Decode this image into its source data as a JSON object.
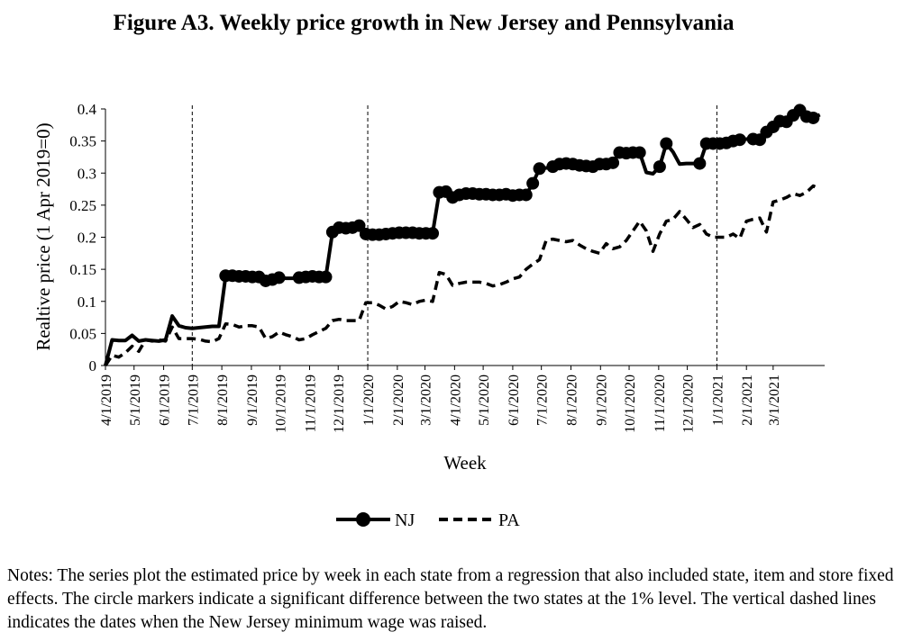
{
  "title": "Figure A3. Weekly price growth in New Jersey and Pennsylvania",
  "notes": "Notes: The series plot the estimated price by week in each state from a regression that also included state, item and store fixed effects. The circle markers indicate a significant difference between the two states at the 1% level. The vertical dashed lines indicates the dates when the New Jersey minimum wage was raised.",
  "chart_data": {
    "type": "line",
    "xlabel": "Week",
    "ylabel": "Realtive price (1 Apr 2019=0)",
    "ylim": [
      0,
      0.4
    ],
    "yticks": [
      0,
      0.05,
      0.1,
      0.15,
      0.2,
      0.25,
      0.3,
      0.35,
      0.4
    ],
    "ytick_labels": [
      "0",
      "0.05",
      "0.1",
      "0.15",
      "0.2",
      "0.25",
      "0.3",
      "0.35",
      "0.4"
    ],
    "xticks": [
      "4/1/2019",
      "5/1/2019",
      "6/1/2019",
      "7/1/2019",
      "8/1/2019",
      "9/1/2019",
      "10/1/2019",
      "11/1/2019",
      "12/1/2019",
      "1/1/2020",
      "2/1/2020",
      "3/1/2020",
      "4/1/2020",
      "5/1/2020",
      "6/1/2020",
      "7/1/2020",
      "8/1/2020",
      "9/1/2020",
      "10/1/2020",
      "11/1/2020",
      "12/1/2020",
      "1/1/2021",
      "2/1/2021",
      "3/1/2021"
    ],
    "xlim": [
      "2019-04-01",
      "2021-04-24"
    ],
    "vlines": [
      "2019-07-01",
      "2020-01-01",
      "2021-01-01"
    ],
    "legend": {
      "position": "bottom",
      "entries": [
        "NJ",
        "PA"
      ]
    },
    "grid": false,
    "series": [
      {
        "name": "NJ",
        "style": "solid",
        "marker": "circle",
        "points": [
          [
            "2019-04-01",
            0,
            0
          ],
          [
            "2019-04-08",
            0.04,
            0
          ],
          [
            "2019-04-15",
            0.039,
            0
          ],
          [
            "2019-04-22",
            0.039,
            0
          ],
          [
            "2019-04-29",
            0.047,
            0
          ],
          [
            "2019-05-06",
            0.038,
            0
          ],
          [
            "2019-05-13",
            0.04,
            0
          ],
          [
            "2019-05-20",
            0.039,
            0
          ],
          [
            "2019-05-27",
            0.038,
            0
          ],
          [
            "2019-06-03",
            0.04,
            0
          ],
          [
            "2019-06-10",
            0.077,
            0
          ],
          [
            "2019-06-17",
            0.062,
            0
          ],
          [
            "2019-06-24",
            0.059,
            0
          ],
          [
            "2019-07-01",
            0.058,
            0
          ],
          [
            "2019-07-08",
            0.059,
            0
          ],
          [
            "2019-07-15",
            0.06,
            0
          ],
          [
            "2019-07-22",
            0.061,
            0
          ],
          [
            "2019-07-29",
            0.061,
            0
          ],
          [
            "2019-08-05",
            0.14,
            1
          ],
          [
            "2019-08-12",
            0.14,
            1
          ],
          [
            "2019-08-19",
            0.139,
            1
          ],
          [
            "2019-08-26",
            0.139,
            1
          ],
          [
            "2019-09-02",
            0.138,
            1
          ],
          [
            "2019-09-09",
            0.138,
            1
          ],
          [
            "2019-09-16",
            0.132,
            1
          ],
          [
            "2019-09-23",
            0.134,
            1
          ],
          [
            "2019-09-30",
            0.137,
            1
          ],
          [
            "2019-10-07",
            0.136,
            0
          ],
          [
            "2019-10-14",
            0.136,
            0
          ],
          [
            "2019-10-21",
            0.137,
            1
          ],
          [
            "2019-10-28",
            0.138,
            1
          ],
          [
            "2019-11-04",
            0.139,
            1
          ],
          [
            "2019-11-11",
            0.138,
            1
          ],
          [
            "2019-11-18",
            0.138,
            1
          ],
          [
            "2019-11-25",
            0.208,
            1
          ],
          [
            "2019-12-02",
            0.215,
            1
          ],
          [
            "2019-12-09",
            0.214,
            1
          ],
          [
            "2019-12-16",
            0.215,
            1
          ],
          [
            "2019-12-23",
            0.218,
            1
          ],
          [
            "2019-12-30",
            0.205,
            1
          ],
          [
            "2020-01-06",
            0.204,
            1
          ],
          [
            "2020-01-13",
            0.204,
            1
          ],
          [
            "2020-01-20",
            0.205,
            1
          ],
          [
            "2020-01-27",
            0.206,
            1
          ],
          [
            "2020-02-03",
            0.207,
            1
          ],
          [
            "2020-02-10",
            0.207,
            1
          ],
          [
            "2020-02-17",
            0.207,
            1
          ],
          [
            "2020-02-24",
            0.206,
            1
          ],
          [
            "2020-03-02",
            0.206,
            1
          ],
          [
            "2020-03-09",
            0.206,
            1
          ],
          [
            "2020-03-16",
            0.27,
            1
          ],
          [
            "2020-03-23",
            0.271,
            1
          ],
          [
            "2020-03-30",
            0.262,
            1
          ],
          [
            "2020-04-06",
            0.266,
            1
          ],
          [
            "2020-04-13",
            0.268,
            1
          ],
          [
            "2020-04-20",
            0.268,
            1
          ],
          [
            "2020-04-27",
            0.267,
            1
          ],
          [
            "2020-05-04",
            0.267,
            1
          ],
          [
            "2020-05-11",
            0.266,
            1
          ],
          [
            "2020-05-18",
            0.266,
            1
          ],
          [
            "2020-05-25",
            0.267,
            1
          ],
          [
            "2020-06-01",
            0.265,
            1
          ],
          [
            "2020-06-08",
            0.266,
            1
          ],
          [
            "2020-06-15",
            0.266,
            1
          ],
          [
            "2020-06-22",
            0.284,
            1
          ],
          [
            "2020-06-29",
            0.307,
            1
          ],
          [
            "2020-07-06",
            0.308,
            0
          ],
          [
            "2020-07-13",
            0.31,
            1
          ],
          [
            "2020-07-20",
            0.314,
            1
          ],
          [
            "2020-07-27",
            0.315,
            1
          ],
          [
            "2020-08-03",
            0.314,
            1
          ],
          [
            "2020-08-10",
            0.312,
            1
          ],
          [
            "2020-08-17",
            0.311,
            1
          ],
          [
            "2020-08-24",
            0.31,
            1
          ],
          [
            "2020-08-31",
            0.314,
            1
          ],
          [
            "2020-09-07",
            0.314,
            1
          ],
          [
            "2020-09-14",
            0.316,
            1
          ],
          [
            "2020-09-21",
            0.332,
            1
          ],
          [
            "2020-09-28",
            0.331,
            1
          ],
          [
            "2020-10-05",
            0.332,
            1
          ],
          [
            "2020-10-12",
            0.332,
            1
          ],
          [
            "2020-10-19",
            0.301,
            0
          ],
          [
            "2020-10-26",
            0.299,
            0
          ],
          [
            "2020-11-02",
            0.31,
            1
          ],
          [
            "2020-11-09",
            0.346,
            1
          ],
          [
            "2020-11-16",
            0.333,
            0
          ],
          [
            "2020-11-23",
            0.314,
            0
          ],
          [
            "2020-11-30",
            0.315,
            0
          ],
          [
            "2020-12-07",
            0.315,
            0
          ],
          [
            "2020-12-14",
            0.315,
            1
          ],
          [
            "2020-12-21",
            0.346,
            1
          ],
          [
            "2020-12-28",
            0.346,
            1
          ],
          [
            "2021-01-04",
            0.346,
            1
          ],
          [
            "2021-01-11",
            0.347,
            1
          ],
          [
            "2021-01-18",
            0.35,
            1
          ],
          [
            "2021-01-25",
            0.352,
            1
          ],
          [
            "2021-02-01",
            0.353,
            0
          ],
          [
            "2021-02-08",
            0.353,
            1
          ],
          [
            "2021-02-15",
            0.352,
            1
          ],
          [
            "2021-02-22",
            0.364,
            1
          ],
          [
            "2021-03-01",
            0.372,
            1
          ],
          [
            "2021-03-08",
            0.381,
            1
          ],
          [
            "2021-03-15",
            0.38,
            1
          ],
          [
            "2021-03-22",
            0.39,
            1
          ],
          [
            "2021-03-29",
            0.398,
            1
          ],
          [
            "2021-04-05",
            0.388,
            1
          ],
          [
            "2021-04-12",
            0.386,
            1
          ],
          [
            "2021-04-19",
            0.391,
            0
          ]
        ]
      },
      {
        "name": "PA",
        "style": "dashed",
        "marker": "none",
        "points": [
          [
            "2019-04-01",
            0,
            0
          ],
          [
            "2019-04-08",
            0.016,
            0
          ],
          [
            "2019-04-15",
            0.013,
            0
          ],
          [
            "2019-04-22",
            0.02,
            0
          ],
          [
            "2019-04-29",
            0.03,
            0
          ],
          [
            "2019-05-06",
            0.022,
            0
          ],
          [
            "2019-05-13",
            0.04,
            0
          ],
          [
            "2019-05-20",
            0.038,
            0
          ],
          [
            "2019-05-27",
            0.04,
            0
          ],
          [
            "2019-06-03",
            0.038,
            0
          ],
          [
            "2019-06-10",
            0.06,
            0
          ],
          [
            "2019-06-17",
            0.042,
            0
          ],
          [
            "2019-06-24",
            0.042,
            0
          ],
          [
            "2019-07-01",
            0.042,
            0
          ],
          [
            "2019-07-08",
            0.041,
            0
          ],
          [
            "2019-07-15",
            0.038,
            0
          ],
          [
            "2019-07-22",
            0.037,
            0
          ],
          [
            "2019-07-29",
            0.042,
            0
          ],
          [
            "2019-08-05",
            0.065,
            0
          ],
          [
            "2019-08-12",
            0.064,
            0
          ],
          [
            "2019-08-19",
            0.06,
            0
          ],
          [
            "2019-08-26",
            0.062,
            0
          ],
          [
            "2019-09-02",
            0.062,
            0
          ],
          [
            "2019-09-09",
            0.06,
            0
          ],
          [
            "2019-09-16",
            0.042,
            0
          ],
          [
            "2019-09-23",
            0.045,
            0
          ],
          [
            "2019-09-30",
            0.052,
            0
          ],
          [
            "2019-10-07",
            0.048,
            0
          ],
          [
            "2019-10-14",
            0.045,
            0
          ],
          [
            "2019-10-21",
            0.04,
            0
          ],
          [
            "2019-10-28",
            0.042,
            0
          ],
          [
            "2019-11-04",
            0.048,
            0
          ],
          [
            "2019-11-11",
            0.053,
            0
          ],
          [
            "2019-11-18",
            0.058,
            0
          ],
          [
            "2019-11-25",
            0.07,
            0
          ],
          [
            "2019-12-02",
            0.072,
            0
          ],
          [
            "2019-12-09",
            0.07,
            0
          ],
          [
            "2019-12-16",
            0.07,
            0
          ],
          [
            "2019-12-23",
            0.07,
            0
          ],
          [
            "2019-12-30",
            0.098,
            0
          ],
          [
            "2020-01-06",
            0.098,
            0
          ],
          [
            "2020-01-13",
            0.094,
            0
          ],
          [
            "2020-01-20",
            0.088,
            0
          ],
          [
            "2020-01-27",
            0.092,
            0
          ],
          [
            "2020-02-03",
            0.1,
            0
          ],
          [
            "2020-02-10",
            0.098,
            0
          ],
          [
            "2020-02-17",
            0.095,
            0
          ],
          [
            "2020-02-24",
            0.1,
            0
          ],
          [
            "2020-03-02",
            0.102,
            0
          ],
          [
            "2020-03-09",
            0.1,
            0
          ],
          [
            "2020-03-16",
            0.145,
            0
          ],
          [
            "2020-03-23",
            0.142,
            0
          ],
          [
            "2020-03-30",
            0.125,
            0
          ],
          [
            "2020-04-06",
            0.128,
            0
          ],
          [
            "2020-04-13",
            0.13,
            0
          ],
          [
            "2020-04-20",
            0.13,
            0
          ],
          [
            "2020-04-27",
            0.13,
            0
          ],
          [
            "2020-05-04",
            0.128,
            0
          ],
          [
            "2020-05-11",
            0.124,
            0
          ],
          [
            "2020-05-18",
            0.126,
            0
          ],
          [
            "2020-05-25",
            0.13,
            0
          ],
          [
            "2020-06-01",
            0.135,
            0
          ],
          [
            "2020-06-08",
            0.138,
            0
          ],
          [
            "2020-06-15",
            0.15,
            0
          ],
          [
            "2020-06-22",
            0.158,
            0
          ],
          [
            "2020-06-29",
            0.165,
            0
          ],
          [
            "2020-07-06",
            0.195,
            0
          ],
          [
            "2020-07-13",
            0.197,
            0
          ],
          [
            "2020-07-20",
            0.195,
            0
          ],
          [
            "2020-07-27",
            0.193,
            0
          ],
          [
            "2020-08-03",
            0.195,
            0
          ],
          [
            "2020-08-10",
            0.188,
            0
          ],
          [
            "2020-08-17",
            0.182,
            0
          ],
          [
            "2020-08-24",
            0.178,
            0
          ],
          [
            "2020-08-31",
            0.175,
            0
          ],
          [
            "2020-09-07",
            0.19,
            0
          ],
          [
            "2020-09-14",
            0.182,
            0
          ],
          [
            "2020-09-21",
            0.185,
            0
          ],
          [
            "2020-09-28",
            0.195,
            0
          ],
          [
            "2020-10-05",
            0.21,
            0
          ],
          [
            "2020-10-12",
            0.225,
            0
          ],
          [
            "2020-10-19",
            0.21,
            0
          ],
          [
            "2020-10-26",
            0.178,
            0
          ],
          [
            "2020-11-02",
            0.205,
            0
          ],
          [
            "2020-11-09",
            0.225,
            0
          ],
          [
            "2020-11-16",
            0.228,
            0
          ],
          [
            "2020-11-23",
            0.24,
            0
          ],
          [
            "2020-11-30",
            0.228,
            0
          ],
          [
            "2020-12-07",
            0.215,
            0
          ],
          [
            "2020-12-14",
            0.22,
            0
          ],
          [
            "2020-12-21",
            0.205,
            0
          ],
          [
            "2020-12-28",
            0.2,
            0
          ],
          [
            "2021-01-04",
            0.2,
            0
          ],
          [
            "2021-01-11",
            0.2,
            0
          ],
          [
            "2021-01-18",
            0.205,
            0
          ],
          [
            "2021-01-25",
            0.198,
            0
          ],
          [
            "2021-02-01",
            0.225,
            0
          ],
          [
            "2021-02-08",
            0.228,
            0
          ],
          [
            "2021-02-15",
            0.23,
            0
          ],
          [
            "2021-02-22",
            0.208,
            0
          ],
          [
            "2021-03-01",
            0.255,
            0
          ],
          [
            "2021-03-08",
            0.258,
            0
          ],
          [
            "2021-03-15",
            0.262,
            0
          ],
          [
            "2021-03-22",
            0.268,
            0
          ],
          [
            "2021-03-29",
            0.265,
            0
          ],
          [
            "2021-04-05",
            0.27,
            0
          ],
          [
            "2021-04-12",
            0.28,
            0
          ],
          [
            "2021-04-19",
            0.275,
            0
          ]
        ]
      }
    ]
  }
}
